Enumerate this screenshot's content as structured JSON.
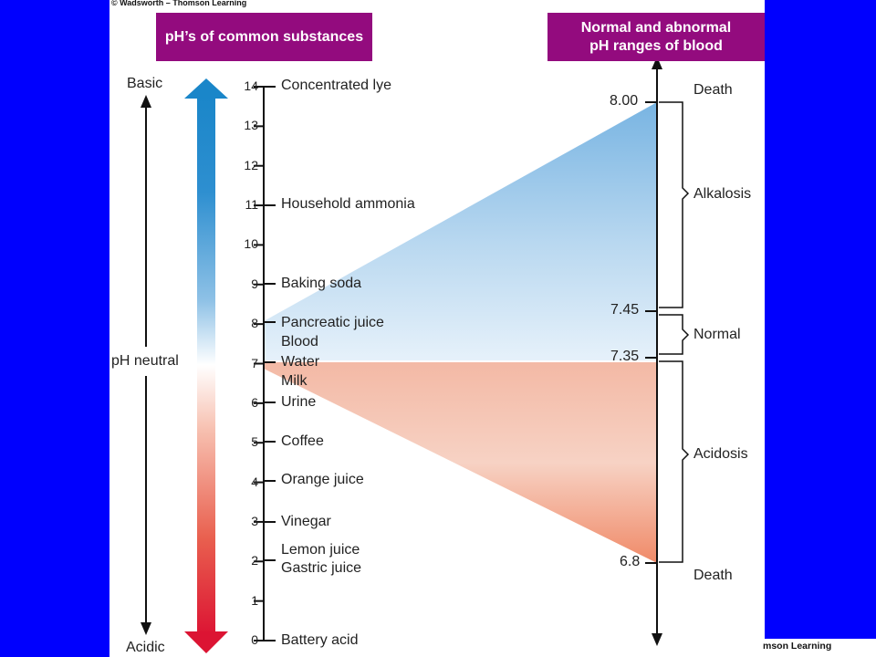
{
  "copyright_top": "© Wadsworth – Thomson Learning",
  "copyright_bottom": "mson Learning",
  "headers": {
    "left": "pH’s of common substances",
    "right_line1": "Normal and abnormal",
    "right_line2": "pH ranges of blood"
  },
  "side_labels": {
    "basic": "Basic",
    "neutral": "pH neutral",
    "acidic": "Acidic"
  },
  "scale_ticks": [
    "0",
    "1",
    "2",
    "3",
    "4",
    "5",
    "6",
    "7",
    "8",
    "9",
    "10",
    "11",
    "12",
    "13",
    "14"
  ],
  "substances": [
    {
      "name": "Concentrated lye"
    },
    {
      "name": "Household ammonia"
    },
    {
      "name": "Baking soda"
    },
    {
      "name": "Pancreatic juice"
    },
    {
      "name": "Blood"
    },
    {
      "name": "Water"
    },
    {
      "name": "Milk"
    },
    {
      "name": "Urine"
    },
    {
      "name": "Coffee"
    },
    {
      "name": "Orange juice"
    },
    {
      "name": "Vinegar"
    },
    {
      "name": "Lemon juice"
    },
    {
      "name": "Gastric juice"
    },
    {
      "name": "Battery acid"
    }
  ],
  "blood_scale": {
    "ticks": [
      "8.00",
      "7.45",
      "7.35",
      "6.8"
    ],
    "ranges": [
      "Death",
      "Alkalosis",
      "Normal",
      "Acidosis",
      "Death"
    ]
  },
  "colors": {
    "background": "#0000fe",
    "header": "#930b7e",
    "basic": "#1a86c9",
    "acidic": "#dc1433"
  }
}
